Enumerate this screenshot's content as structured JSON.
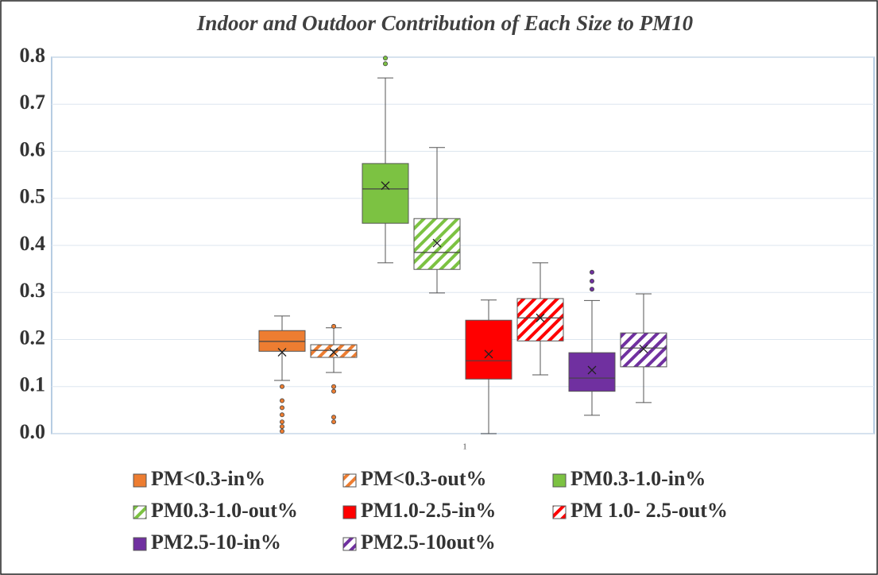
{
  "chart_data": {
    "type": "box",
    "title": "Indoor and Outdoor Contribution of Each Size to PM10",
    "categories": [
      "1"
    ],
    "ylim": [
      0,
      0.8
    ],
    "yticks": [
      {
        "value": 0,
        "label": "0.0"
      },
      0.1,
      0.2,
      0.3,
      0.4,
      0.5,
      0.6,
      0.7,
      0.8
    ],
    "grid": true,
    "series": [
      {
        "name": "PM<0.3-in%",
        "color": "#ed7d31",
        "hatched": false,
        "min": 0.113,
        "q1": 0.175,
        "median": 0.196,
        "q3": 0.219,
        "max": 0.25,
        "mean": 0.173,
        "outliers": [
          0.1,
          0.07,
          0.055,
          0.04,
          0.025,
          0.015,
          0.005
        ]
      },
      {
        "name": "PM<0.3-out%",
        "color": "#ed7d31",
        "hatched": true,
        "min": 0.13,
        "q1": 0.162,
        "median": 0.177,
        "q3": 0.189,
        "max": 0.225,
        "mean": 0.173,
        "outliers": [
          0.228,
          0.1,
          0.09,
          0.035,
          0.025
        ]
      },
      {
        "name": "PM0.3-1.0-in%",
        "color": "#7cc242",
        "hatched": false,
        "min": 0.363,
        "q1": 0.447,
        "median": 0.52,
        "q3": 0.574,
        "max": 0.756,
        "mean": 0.527,
        "outliers": [
          0.798,
          0.786
        ]
      },
      {
        "name": "PM0.3-1.0-out%",
        "color": "#7cc242",
        "hatched": true,
        "min": 0.299,
        "q1": 0.349,
        "median": 0.385,
        "q3": 0.457,
        "max": 0.608,
        "mean": 0.405,
        "outliers": []
      },
      {
        "name": "PM1.0-2.5-in%",
        "color": "#ff0000",
        "hatched": false,
        "min": 0.0,
        "q1": 0.116,
        "median": 0.155,
        "q3": 0.241,
        "max": 0.284,
        "mean": 0.169,
        "outliers": []
      },
      {
        "name": "PM 1.0- 2.5-out%",
        "color": "#ff0000",
        "hatched": true,
        "min": 0.125,
        "q1": 0.197,
        "median": 0.246,
        "q3": 0.287,
        "max": 0.363,
        "mean": 0.246,
        "outliers": []
      },
      {
        "name": "PM2.5-10-in%",
        "color": "#7030a0",
        "hatched": false,
        "min": 0.039,
        "q1": 0.09,
        "median": 0.118,
        "q3": 0.172,
        "max": 0.283,
        "mean": 0.135,
        "outliers": [
          0.343,
          0.324,
          0.307
        ]
      },
      {
        "name": "PM2.5-10out%",
        "color": "#7030a0",
        "hatched": true,
        "min": 0.066,
        "q1": 0.142,
        "median": 0.182,
        "q3": 0.214,
        "max": 0.297,
        "mean": 0.18,
        "outliers": []
      }
    ]
  }
}
